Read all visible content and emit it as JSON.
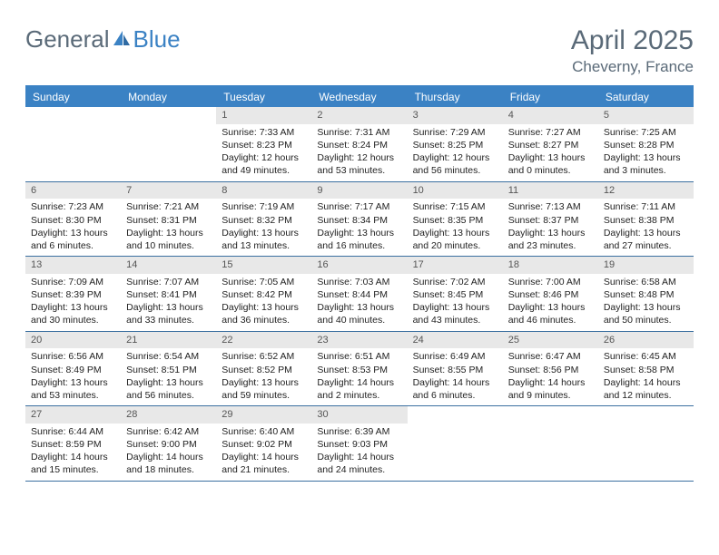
{
  "brand": {
    "part1": "General",
    "part2": "Blue"
  },
  "title": "April 2025",
  "location": "Cheverny, France",
  "colors": {
    "header_bg": "#3b82c4",
    "header_text": "#ffffff",
    "rule": "#3b6fa0",
    "daynum_bg": "#e8e8e8",
    "text": "#333333",
    "brand_gray": "#5a6a78",
    "brand_blue": "#3b82c4"
  },
  "days_of_week": [
    "Sunday",
    "Monday",
    "Tuesday",
    "Wednesday",
    "Thursday",
    "Friday",
    "Saturday"
  ],
  "weeks": [
    [
      {
        "n": "",
        "sunrise": "",
        "sunset": "",
        "daylight": ""
      },
      {
        "n": "",
        "sunrise": "",
        "sunset": "",
        "daylight": ""
      },
      {
        "n": "1",
        "sunrise": "Sunrise: 7:33 AM",
        "sunset": "Sunset: 8:23 PM",
        "daylight": "Daylight: 12 hours and 49 minutes."
      },
      {
        "n": "2",
        "sunrise": "Sunrise: 7:31 AM",
        "sunset": "Sunset: 8:24 PM",
        "daylight": "Daylight: 12 hours and 53 minutes."
      },
      {
        "n": "3",
        "sunrise": "Sunrise: 7:29 AM",
        "sunset": "Sunset: 8:25 PM",
        "daylight": "Daylight: 12 hours and 56 minutes."
      },
      {
        "n": "4",
        "sunrise": "Sunrise: 7:27 AM",
        "sunset": "Sunset: 8:27 PM",
        "daylight": "Daylight: 13 hours and 0 minutes."
      },
      {
        "n": "5",
        "sunrise": "Sunrise: 7:25 AM",
        "sunset": "Sunset: 8:28 PM",
        "daylight": "Daylight: 13 hours and 3 minutes."
      }
    ],
    [
      {
        "n": "6",
        "sunrise": "Sunrise: 7:23 AM",
        "sunset": "Sunset: 8:30 PM",
        "daylight": "Daylight: 13 hours and 6 minutes."
      },
      {
        "n": "7",
        "sunrise": "Sunrise: 7:21 AM",
        "sunset": "Sunset: 8:31 PM",
        "daylight": "Daylight: 13 hours and 10 minutes."
      },
      {
        "n": "8",
        "sunrise": "Sunrise: 7:19 AM",
        "sunset": "Sunset: 8:32 PM",
        "daylight": "Daylight: 13 hours and 13 minutes."
      },
      {
        "n": "9",
        "sunrise": "Sunrise: 7:17 AM",
        "sunset": "Sunset: 8:34 PM",
        "daylight": "Daylight: 13 hours and 16 minutes."
      },
      {
        "n": "10",
        "sunrise": "Sunrise: 7:15 AM",
        "sunset": "Sunset: 8:35 PM",
        "daylight": "Daylight: 13 hours and 20 minutes."
      },
      {
        "n": "11",
        "sunrise": "Sunrise: 7:13 AM",
        "sunset": "Sunset: 8:37 PM",
        "daylight": "Daylight: 13 hours and 23 minutes."
      },
      {
        "n": "12",
        "sunrise": "Sunrise: 7:11 AM",
        "sunset": "Sunset: 8:38 PM",
        "daylight": "Daylight: 13 hours and 27 minutes."
      }
    ],
    [
      {
        "n": "13",
        "sunrise": "Sunrise: 7:09 AM",
        "sunset": "Sunset: 8:39 PM",
        "daylight": "Daylight: 13 hours and 30 minutes."
      },
      {
        "n": "14",
        "sunrise": "Sunrise: 7:07 AM",
        "sunset": "Sunset: 8:41 PM",
        "daylight": "Daylight: 13 hours and 33 minutes."
      },
      {
        "n": "15",
        "sunrise": "Sunrise: 7:05 AM",
        "sunset": "Sunset: 8:42 PM",
        "daylight": "Daylight: 13 hours and 36 minutes."
      },
      {
        "n": "16",
        "sunrise": "Sunrise: 7:03 AM",
        "sunset": "Sunset: 8:44 PM",
        "daylight": "Daylight: 13 hours and 40 minutes."
      },
      {
        "n": "17",
        "sunrise": "Sunrise: 7:02 AM",
        "sunset": "Sunset: 8:45 PM",
        "daylight": "Daylight: 13 hours and 43 minutes."
      },
      {
        "n": "18",
        "sunrise": "Sunrise: 7:00 AM",
        "sunset": "Sunset: 8:46 PM",
        "daylight": "Daylight: 13 hours and 46 minutes."
      },
      {
        "n": "19",
        "sunrise": "Sunrise: 6:58 AM",
        "sunset": "Sunset: 8:48 PM",
        "daylight": "Daylight: 13 hours and 50 minutes."
      }
    ],
    [
      {
        "n": "20",
        "sunrise": "Sunrise: 6:56 AM",
        "sunset": "Sunset: 8:49 PM",
        "daylight": "Daylight: 13 hours and 53 minutes."
      },
      {
        "n": "21",
        "sunrise": "Sunrise: 6:54 AM",
        "sunset": "Sunset: 8:51 PM",
        "daylight": "Daylight: 13 hours and 56 minutes."
      },
      {
        "n": "22",
        "sunrise": "Sunrise: 6:52 AM",
        "sunset": "Sunset: 8:52 PM",
        "daylight": "Daylight: 13 hours and 59 minutes."
      },
      {
        "n": "23",
        "sunrise": "Sunrise: 6:51 AM",
        "sunset": "Sunset: 8:53 PM",
        "daylight": "Daylight: 14 hours and 2 minutes."
      },
      {
        "n": "24",
        "sunrise": "Sunrise: 6:49 AM",
        "sunset": "Sunset: 8:55 PM",
        "daylight": "Daylight: 14 hours and 6 minutes."
      },
      {
        "n": "25",
        "sunrise": "Sunrise: 6:47 AM",
        "sunset": "Sunset: 8:56 PM",
        "daylight": "Daylight: 14 hours and 9 minutes."
      },
      {
        "n": "26",
        "sunrise": "Sunrise: 6:45 AM",
        "sunset": "Sunset: 8:58 PM",
        "daylight": "Daylight: 14 hours and 12 minutes."
      }
    ],
    [
      {
        "n": "27",
        "sunrise": "Sunrise: 6:44 AM",
        "sunset": "Sunset: 8:59 PM",
        "daylight": "Daylight: 14 hours and 15 minutes."
      },
      {
        "n": "28",
        "sunrise": "Sunrise: 6:42 AM",
        "sunset": "Sunset: 9:00 PM",
        "daylight": "Daylight: 14 hours and 18 minutes."
      },
      {
        "n": "29",
        "sunrise": "Sunrise: 6:40 AM",
        "sunset": "Sunset: 9:02 PM",
        "daylight": "Daylight: 14 hours and 21 minutes."
      },
      {
        "n": "30",
        "sunrise": "Sunrise: 6:39 AM",
        "sunset": "Sunset: 9:03 PM",
        "daylight": "Daylight: 14 hours and 24 minutes."
      },
      {
        "n": "",
        "sunrise": "",
        "sunset": "",
        "daylight": ""
      },
      {
        "n": "",
        "sunrise": "",
        "sunset": "",
        "daylight": ""
      },
      {
        "n": "",
        "sunrise": "",
        "sunset": "",
        "daylight": ""
      }
    ]
  ]
}
